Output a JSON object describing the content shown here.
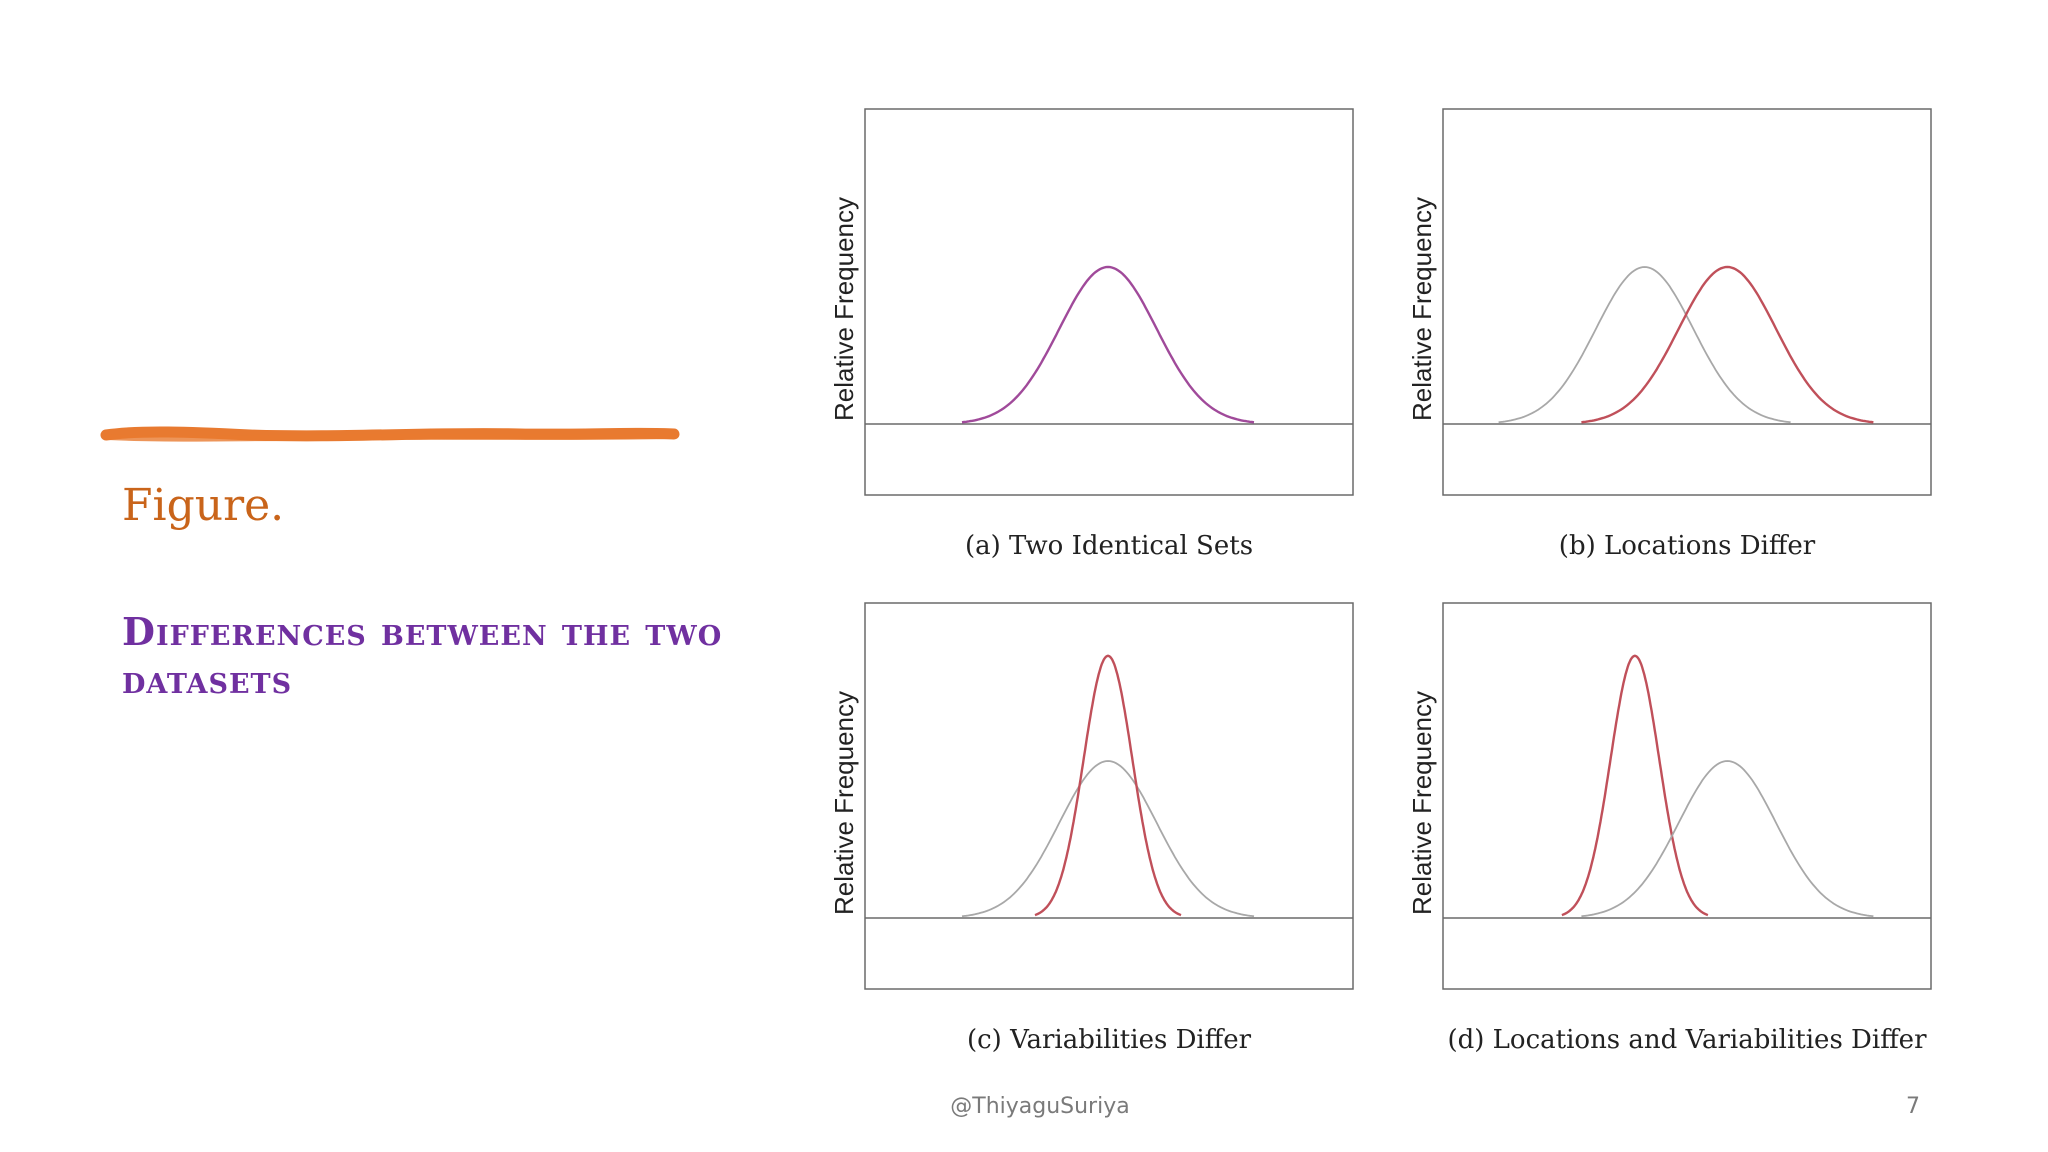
{
  "slide": {
    "heading": "Figure.",
    "subtitle": "Differences between the two datasets",
    "footer": "@ThiyaguSuriya",
    "page_number": "7"
  },
  "colors": {
    "accent_brush": "#e87a30",
    "heading": "#c9641a",
    "subtitle": "#7030a0",
    "curve_red": "#c0505a",
    "curve_gray": "#a8a8a8",
    "curve_overlap": "#a04a9a"
  },
  "chart_data": [
    {
      "type": "line",
      "caption": "(a) Two Identical Sets",
      "ylabel": "Relative Frequency",
      "xlabel": "",
      "series": [
        {
          "color": "#a04a9a",
          "mean": 0,
          "sd": 1,
          "peak": 1.0
        }
      ]
    },
    {
      "type": "line",
      "caption": "(b) Locations Differ",
      "ylabel": "Relative Frequency",
      "xlabel": "",
      "series": [
        {
          "color": "#a8a8a8",
          "mean": -0.85,
          "sd": 1,
          "peak": 1.0
        },
        {
          "color": "#c0505a",
          "mean": 0.85,
          "sd": 1,
          "peak": 1.0
        }
      ]
    },
    {
      "type": "line",
      "caption": "(c) Variabilities Differ",
      "ylabel": "Relative Frequency",
      "xlabel": "",
      "series": [
        {
          "color": "#a8a8a8",
          "mean": 0,
          "sd": 1,
          "peak": 1.0
        },
        {
          "color": "#c0505a",
          "mean": 0,
          "sd": 0.5,
          "peak": 1.67
        }
      ]
    },
    {
      "type": "line",
      "caption": "(d) Locations and Variabilities Differ",
      "ylabel": "Relative Frequency",
      "xlabel": "",
      "series": [
        {
          "color": "#c0505a",
          "mean": -1.05,
          "sd": 0.5,
          "peak": 1.67
        },
        {
          "color": "#a8a8a8",
          "mean": 0.85,
          "sd": 1,
          "peak": 1.0
        }
      ]
    }
  ]
}
